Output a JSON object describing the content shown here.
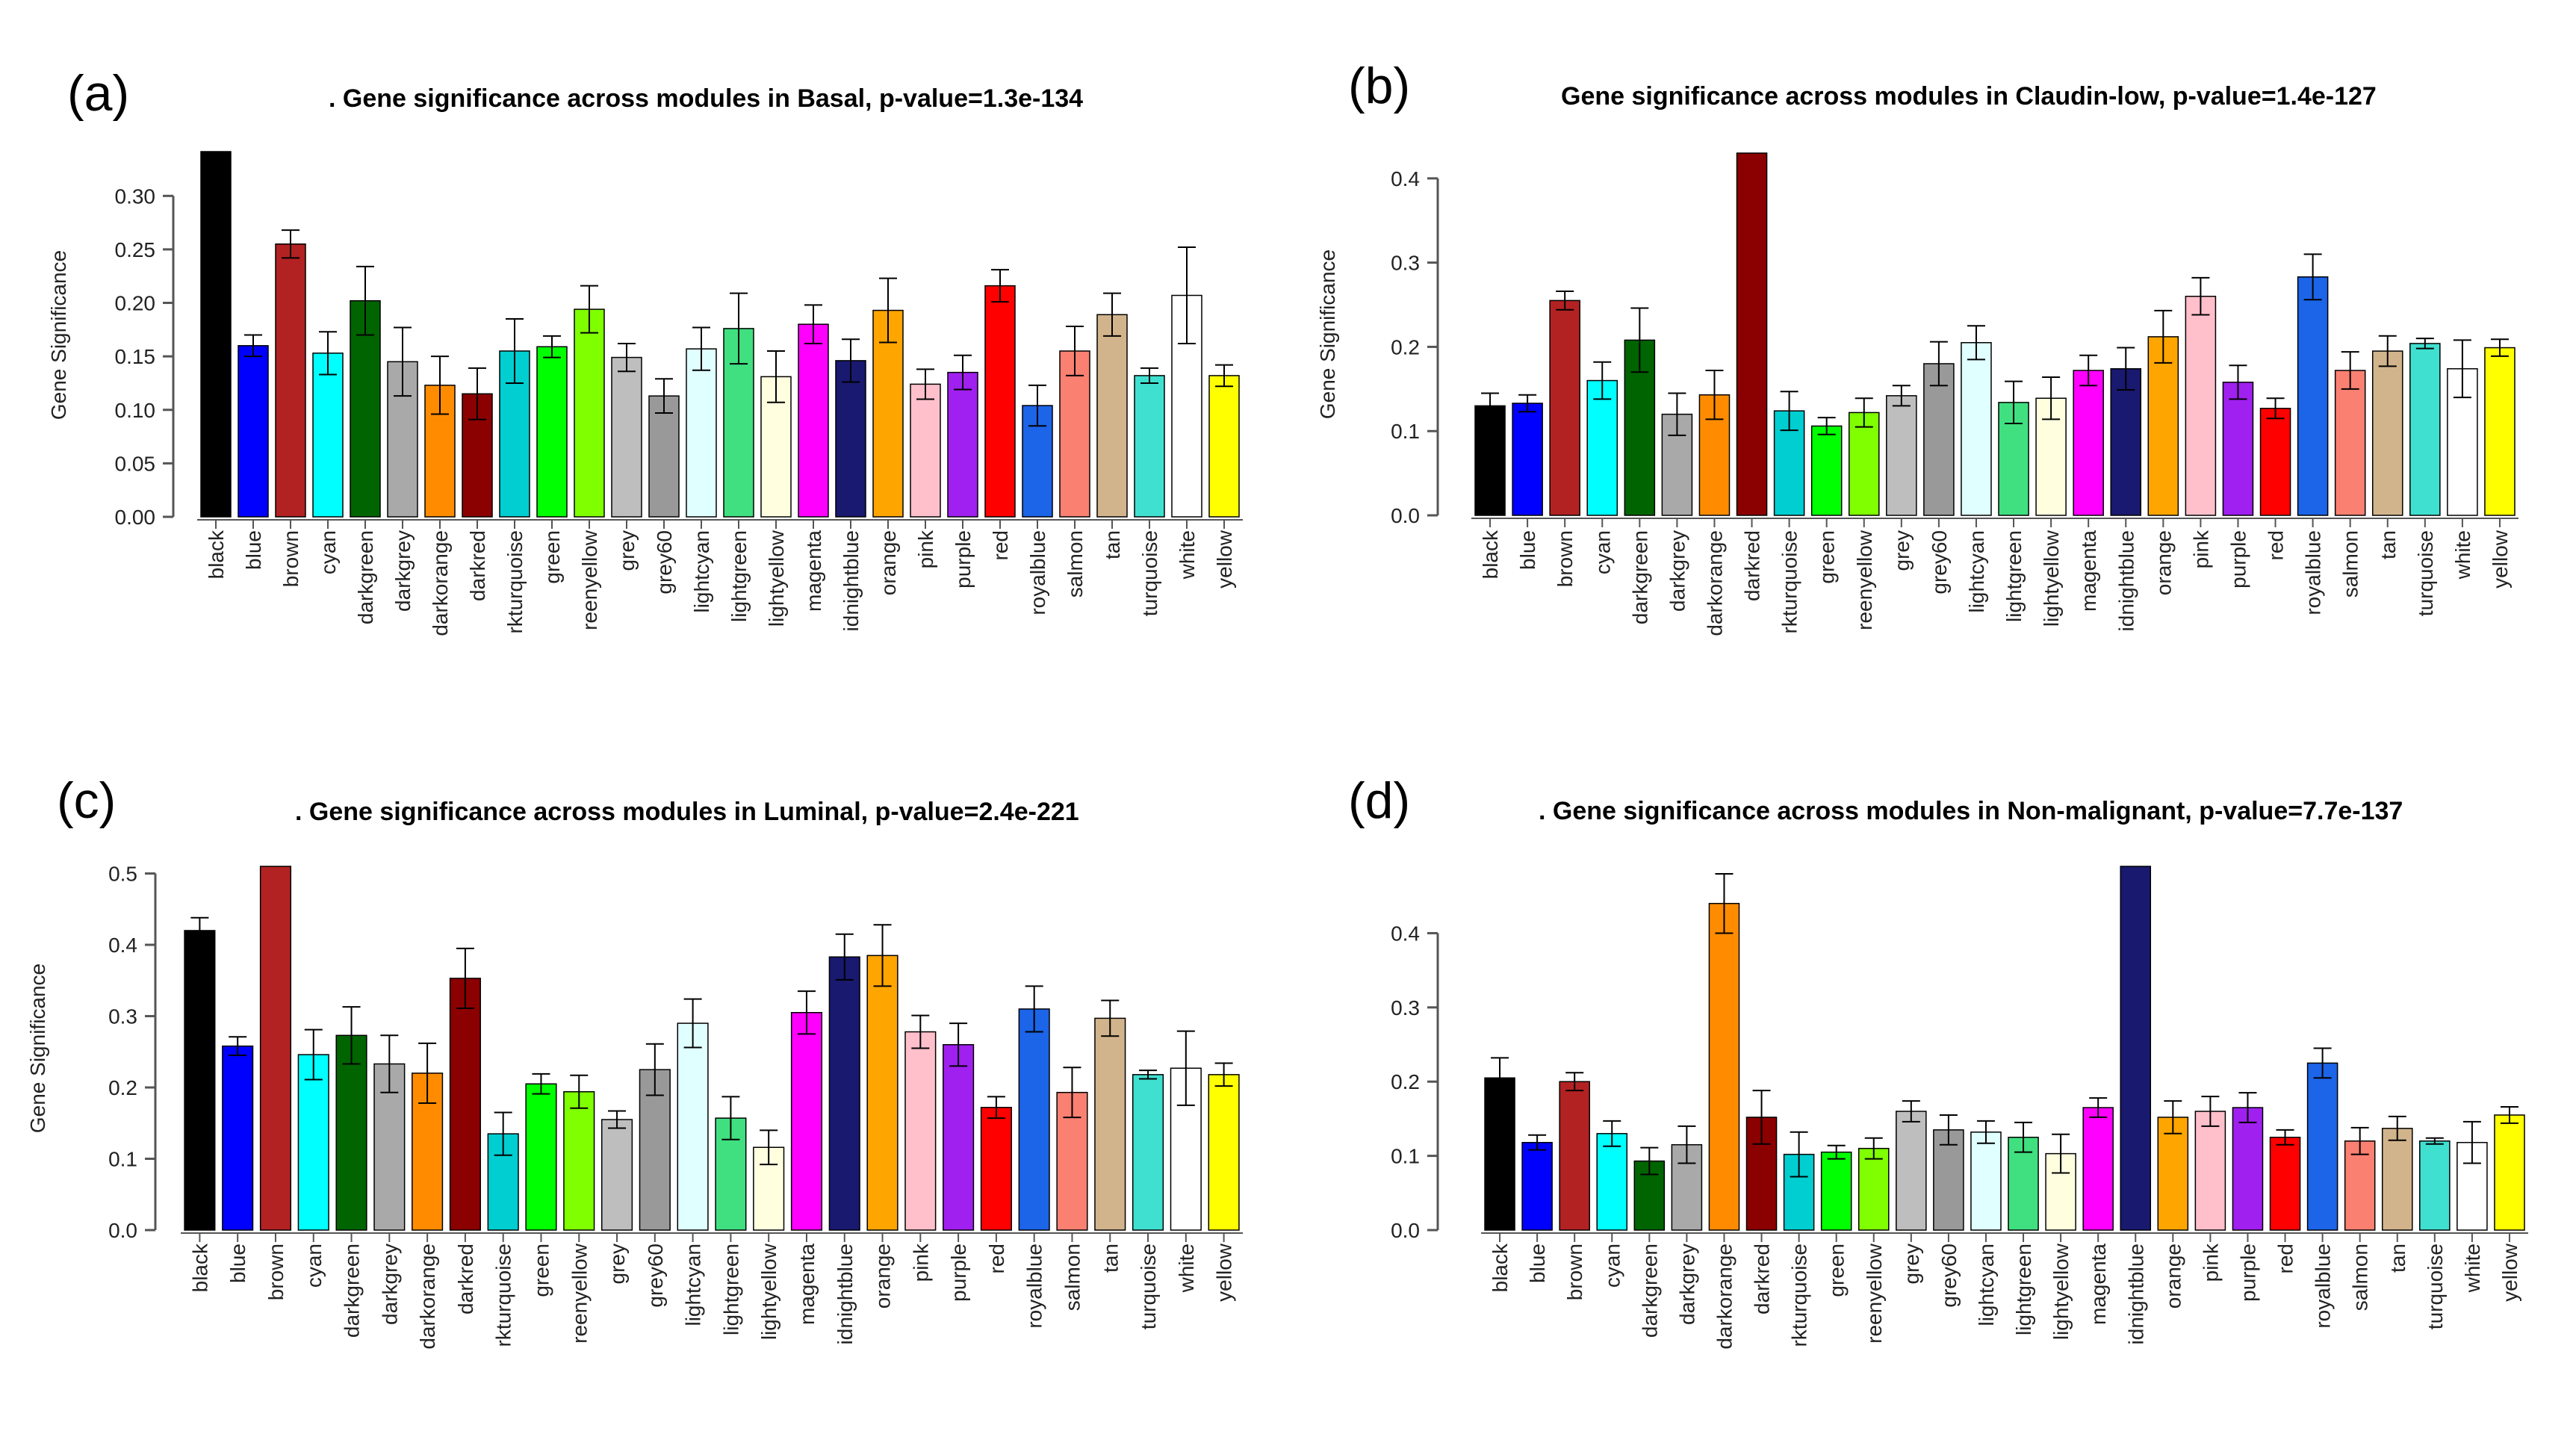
{
  "chart_data": [
    {
      "type": "bar",
      "panel_label": "(a)",
      "title": ". Gene significance across modules in Basal, p-value=1.3e-134",
      "xlabel": "",
      "ylabel": "Gene Significance",
      "ylim": [
        0,
        0.34
      ],
      "yticks": [
        "0.00",
        "0.05",
        "0.10",
        "0.15",
        "0.20",
        "0.25",
        "0.30"
      ],
      "categories": [
        "black",
        "blue",
        "brown",
        "cyan",
        "darkgreen",
        "darkgrey",
        "darkorange",
        "darkred",
        "darkturquoise",
        "green",
        "greenyellow",
        "grey",
        "grey60",
        "lightcyan",
        "lightgreen",
        "lightyellow",
        "magenta",
        "midnightblue",
        "orange",
        "pink",
        "purple",
        "red",
        "royalblue",
        "salmon",
        "tan",
        "turquoise",
        "white",
        "yellow"
      ],
      "category_labels": [
        "black",
        "blue",
        "brown",
        "cyan",
        "darkgreen",
        "darkgrey",
        "darkorange",
        "darkred",
        "rkturquoise",
        "green",
        "reenyellow",
        "grey",
        "grey60",
        "lightcyan",
        "lightgreen",
        "lightyellow",
        "magenta",
        "idnightblue",
        "orange",
        "pink",
        "purple",
        "red",
        "royalblue",
        "salmon",
        "tan",
        "turquoise",
        "white",
        "yellow"
      ],
      "values": [
        0.35,
        0.16,
        0.255,
        0.153,
        0.202,
        0.145,
        0.123,
        0.115,
        0.155,
        0.159,
        0.194,
        0.149,
        0.113,
        0.157,
        0.176,
        0.131,
        0.18,
        0.146,
        0.193,
        0.124,
        0.135,
        0.216,
        0.104,
        0.155,
        0.189,
        0.132,
        0.207,
        0.132
      ],
      "errors": [
        0.0,
        0.01,
        0.013,
        0.02,
        0.032,
        0.032,
        0.027,
        0.024,
        0.03,
        0.01,
        0.022,
        0.013,
        0.016,
        0.02,
        0.033,
        0.024,
        0.018,
        0.02,
        0.03,
        0.014,
        0.016,
        0.015,
        0.019,
        0.023,
        0.02,
        0.007,
        0.045,
        0.01
      ]
    },
    {
      "type": "bar",
      "panel_label": "(b)",
      "title": "Gene significance across modules in Claudin-low, p-value=1.4e-127",
      "xlabel": "",
      "ylabel": "Gene Significance",
      "ylim": [
        0,
        0.43
      ],
      "yticks": [
        "0.0",
        "0.1",
        "0.2",
        "0.3",
        "0.4"
      ],
      "categories": [
        "black",
        "blue",
        "brown",
        "cyan",
        "darkgreen",
        "darkgrey",
        "darkorange",
        "darkred",
        "darkturquoise",
        "green",
        "greenyellow",
        "grey",
        "grey60",
        "lightcyan",
        "lightgreen",
        "lightyellow",
        "magenta",
        "midnightblue",
        "orange",
        "pink",
        "purple",
        "red",
        "royalblue",
        "salmon",
        "tan",
        "turquoise",
        "white",
        "yellow"
      ],
      "category_labels": [
        "black",
        "blue",
        "brown",
        "cyan",
        "darkgreen",
        "darkgrey",
        "darkorange",
        "darkred",
        "rkturquoise",
        "green",
        "reenyellow",
        "grey",
        "grey60",
        "lightcyan",
        "lightgreen",
        "lightyellow",
        "magenta",
        "idnightblue",
        "orange",
        "pink",
        "purple",
        "red",
        "royalblue",
        "salmon",
        "tan",
        "turquoise",
        "white",
        "yellow"
      ],
      "values": [
        0.13,
        0.133,
        0.255,
        0.16,
        0.208,
        0.12,
        0.143,
        0.43,
        0.124,
        0.106,
        0.122,
        0.142,
        0.18,
        0.205,
        0.134,
        0.139,
        0.172,
        0.174,
        0.212,
        0.26,
        0.158,
        0.127,
        0.283,
        0.172,
        0.195,
        0.204,
        0.174,
        0.199
      ],
      "errors": [
        0.015,
        0.01,
        0.011,
        0.022,
        0.038,
        0.025,
        0.029,
        0.0,
        0.023,
        0.01,
        0.017,
        0.012,
        0.026,
        0.02,
        0.025,
        0.025,
        0.018,
        0.025,
        0.031,
        0.022,
        0.02,
        0.012,
        0.027,
        0.022,
        0.018,
        0.006,
        0.034,
        0.01
      ]
    },
    {
      "type": "bar",
      "panel_label": "(c)",
      "title": ". Gene significance across modules in Luminal, p-value=2.4e-221",
      "xlabel": "",
      "ylabel": "Gene Significance",
      "ylim": [
        0,
        0.51
      ],
      "yticks": [
        "0.0",
        "0.1",
        "0.2",
        "0.3",
        "0.4",
        "0.5"
      ],
      "categories": [
        "black",
        "blue",
        "brown",
        "cyan",
        "darkgreen",
        "darkgrey",
        "darkorange",
        "darkred",
        "darkturquoise",
        "green",
        "greenyellow",
        "grey",
        "grey60",
        "lightcyan",
        "lightgreen",
        "lightyellow",
        "magenta",
        "midnightblue",
        "orange",
        "pink",
        "purple",
        "red",
        "royalblue",
        "salmon",
        "tan",
        "turquoise",
        "white",
        "yellow"
      ],
      "category_labels": [
        "black",
        "blue",
        "brown",
        "cyan",
        "darkgreen",
        "darkgrey",
        "darkorange",
        "darkred",
        "rkturquoise",
        "green",
        "reenyellow",
        "grey",
        "grey60",
        "lightcyan",
        "lightgreen",
        "lightyellow",
        "magenta",
        "idnightblue",
        "orange",
        "pink",
        "purple",
        "red",
        "royalblue",
        "salmon",
        "tan",
        "turquoise",
        "white",
        "yellow"
      ],
      "values": [
        0.42,
        0.258,
        0.51,
        0.246,
        0.273,
        0.233,
        0.22,
        0.353,
        0.135,
        0.205,
        0.194,
        0.155,
        0.225,
        0.29,
        0.157,
        0.116,
        0.305,
        0.383,
        0.385,
        0.278,
        0.26,
        0.172,
        0.31,
        0.193,
        0.297,
        0.218,
        0.227,
        0.218
      ],
      "errors": [
        0.018,
        0.013,
        0.0,
        0.035,
        0.04,
        0.04,
        0.042,
        0.042,
        0.03,
        0.014,
        0.023,
        0.012,
        0.036,
        0.034,
        0.03,
        0.024,
        0.03,
        0.032,
        0.043,
        0.023,
        0.03,
        0.015,
        0.032,
        0.035,
        0.025,
        0.006,
        0.052,
        0.016
      ]
    },
    {
      "type": "bar",
      "panel_label": "(d)",
      "title": ". Gene significance across modules in Non-malignant, p-value=7.7e-137",
      "xlabel": "",
      "ylabel": "",
      "ylim": [
        0,
        0.49
      ],
      "yticks": [
        "0.0",
        "0.1",
        "0.2",
        "0.3",
        "0.4"
      ],
      "categories": [
        "black",
        "blue",
        "brown",
        "cyan",
        "darkgreen",
        "darkgrey",
        "darkorange",
        "darkred",
        "darkturquoise",
        "green",
        "greenyellow",
        "grey",
        "grey60",
        "lightcyan",
        "lightgreen",
        "lightyellow",
        "magenta",
        "midnightblue",
        "orange",
        "pink",
        "purple",
        "red",
        "royalblue",
        "salmon",
        "tan",
        "turquoise",
        "white",
        "yellow"
      ],
      "category_labels": [
        "black",
        "blue",
        "brown",
        "cyan",
        "darkgreen",
        "darkgrey",
        "darkorange",
        "darkred",
        "rkturquoise",
        "green",
        "reenyellow",
        "grey",
        "grey60",
        "lightcyan",
        "lightgreen",
        "lightyellow",
        "magenta",
        "idnightblue",
        "orange",
        "pink",
        "purple",
        "red",
        "royalblue",
        "salmon",
        "tan",
        "turquoise",
        "white",
        "yellow"
      ],
      "values": [
        0.205,
        0.118,
        0.2,
        0.13,
        0.093,
        0.115,
        0.44,
        0.152,
        0.102,
        0.105,
        0.11,
        0.16,
        0.135,
        0.132,
        0.125,
        0.103,
        0.165,
        0.49,
        0.152,
        0.16,
        0.165,
        0.125,
        0.225,
        0.12,
        0.137,
        0.12,
        0.118,
        0.155
      ],
      "errors": [
        0.027,
        0.01,
        0.012,
        0.017,
        0.018,
        0.025,
        0.04,
        0.036,
        0.03,
        0.009,
        0.014,
        0.014,
        0.02,
        0.015,
        0.02,
        0.026,
        0.013,
        0.0,
        0.022,
        0.02,
        0.02,
        0.01,
        0.02,
        0.018,
        0.016,
        0.004,
        0.028,
        0.011
      ]
    }
  ],
  "bar_colors": {
    "black": "#000000",
    "blue": "#0000ff",
    "brown": "#b22222",
    "cyan": "#00ffff",
    "darkgreen": "#006400",
    "darkgrey": "#a9a9a9",
    "darkorange": "#ff8c00",
    "darkred": "#8b0000",
    "darkturquoise": "#00ced1",
    "green": "#00ff00",
    "greenyellow": "#7fff00",
    "grey": "#bebebe",
    "grey60": "#999999",
    "lightcyan": "#e0ffff",
    "lightgreen": "#40e080",
    "lightyellow": "#ffffe0",
    "magenta": "#ff00ff",
    "midnightblue": "#191970",
    "orange": "#ffa500",
    "pink": "#ffc0cb",
    "purple": "#a020f0",
    "red": "#ff0000",
    "royalblue": "#1c64e8",
    "salmon": "#fa8072",
    "tan": "#d2b48c",
    "turquoise": "#40e0d0",
    "white": "#ffffff",
    "yellow": "#ffff00"
  }
}
